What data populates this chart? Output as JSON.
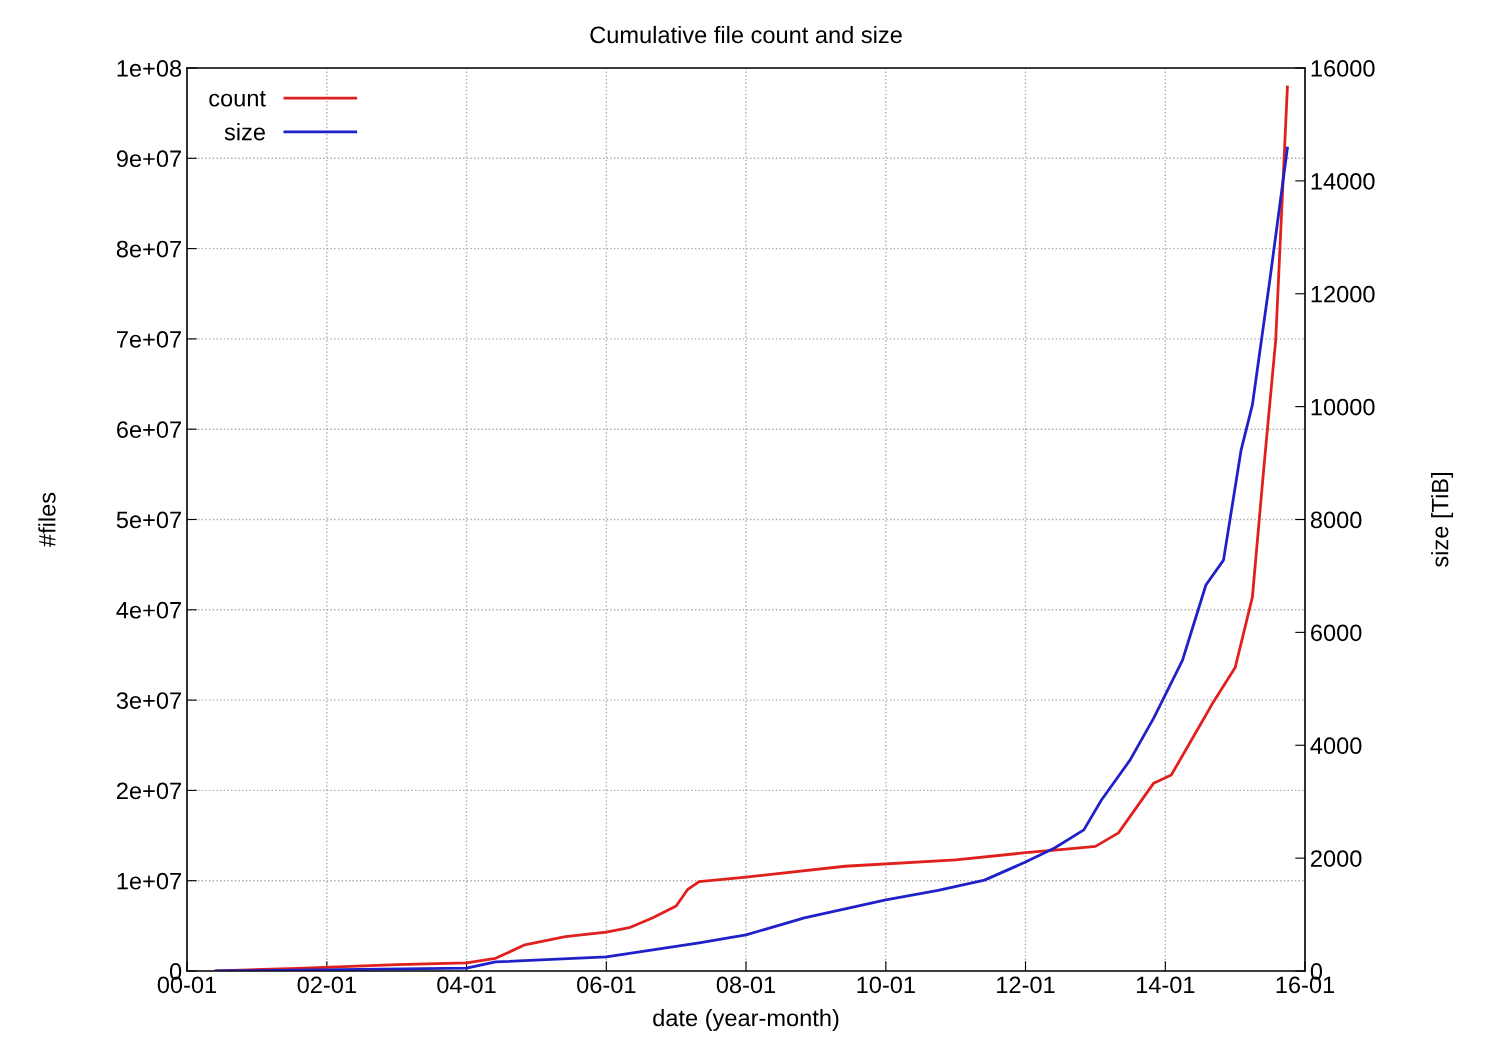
{
  "chart_data": {
    "type": "line",
    "title": "Cumulative file count and size",
    "xlabel": "date (year-month)",
    "ylabel": "#files",
    "y2label": "size [TiB]",
    "xlim": [
      "2000-01",
      "2016-01"
    ],
    "xticks": [
      {
        "value": "2000-01",
        "label": "00-01"
      },
      {
        "value": "2002-01",
        "label": "02-01"
      },
      {
        "value": "2004-01",
        "label": "04-01"
      },
      {
        "value": "2006-01",
        "label": "06-01"
      },
      {
        "value": "2008-01",
        "label": "08-01"
      },
      {
        "value": "2010-01",
        "label": "10-01"
      },
      {
        "value": "2012-01",
        "label": "12-01"
      },
      {
        "value": "2014-01",
        "label": "14-01"
      },
      {
        "value": "2016-01",
        "label": "16-01"
      }
    ],
    "ylim": [
      0,
      100000000
    ],
    "yticks": [
      {
        "value": 0,
        "label": "0"
      },
      {
        "value": 10000000,
        "label": "1e+07"
      },
      {
        "value": 20000000,
        "label": "2e+07"
      },
      {
        "value": 30000000,
        "label": "3e+07"
      },
      {
        "value": 40000000,
        "label": "4e+07"
      },
      {
        "value": 50000000,
        "label": "5e+07"
      },
      {
        "value": 60000000,
        "label": "6e+07"
      },
      {
        "value": 70000000,
        "label": "7e+07"
      },
      {
        "value": 80000000,
        "label": "8e+07"
      },
      {
        "value": 90000000,
        "label": "9e+07"
      },
      {
        "value": 100000000,
        "label": "1e+08"
      }
    ],
    "y2lim": [
      0,
      16000
    ],
    "y2ticks": [
      0,
      2000,
      4000,
      6000,
      8000,
      10000,
      12000,
      14000,
      16000
    ],
    "grid": true,
    "legend": "top left",
    "series": [
      {
        "name": "count",
        "color": "#e0201c",
        "x": [
          "2000-06",
          "2001-08",
          "2003-01",
          "2004-01",
          "2004-06",
          "2004-11",
          "2005-06",
          "2006-01",
          "2006-05",
          "2006-09",
          "2007-01",
          "2007-03",
          "2007-05",
          "2008-01",
          "2009-06",
          "2011-01",
          "2012-01",
          "2012-08",
          "2013-01",
          "2013-05",
          "2013-11",
          "2014-02",
          "2014-06",
          "2014-09",
          "2015-01",
          "2015-04",
          "2015-06",
          "2015-08",
          "2015-10"
        ],
        "values": [
          0,
          300000,
          700000,
          900000,
          1400000,
          2900000,
          3800000,
          4300000,
          4800000,
          5900000,
          7200000,
          9000000,
          9900000,
          10400000,
          11600000,
          12300000,
          13100000,
          13500000,
          13800000,
          15300000,
          20800000,
          21700000,
          26100000,
          29500000,
          33600000,
          41400000,
          56000000,
          69900000,
          97900000
        ]
      },
      {
        "name": "size",
        "color": "#2020c8",
        "axis": "y2",
        "x": [
          "2000-06",
          "2004-01",
          "2004-06",
          "2006-01",
          "2007-05",
          "2008-01",
          "2008-11",
          "2010-01",
          "2010-10",
          "2011-06",
          "2012-01",
          "2012-06",
          "2012-11",
          "2013-02",
          "2013-07",
          "2013-11",
          "2014-04",
          "2014-08",
          "2014-11",
          "2015-02",
          "2015-04",
          "2015-07",
          "2015-10"
        ],
        "values": [
          0,
          50,
          160,
          250,
          500,
          640,
          940,
          1260,
          1430,
          1610,
          1930,
          2180,
          2500,
          3030,
          3740,
          4480,
          5510,
          6840,
          7280,
          9230,
          10030,
          12240,
          14580
        ]
      }
    ]
  }
}
